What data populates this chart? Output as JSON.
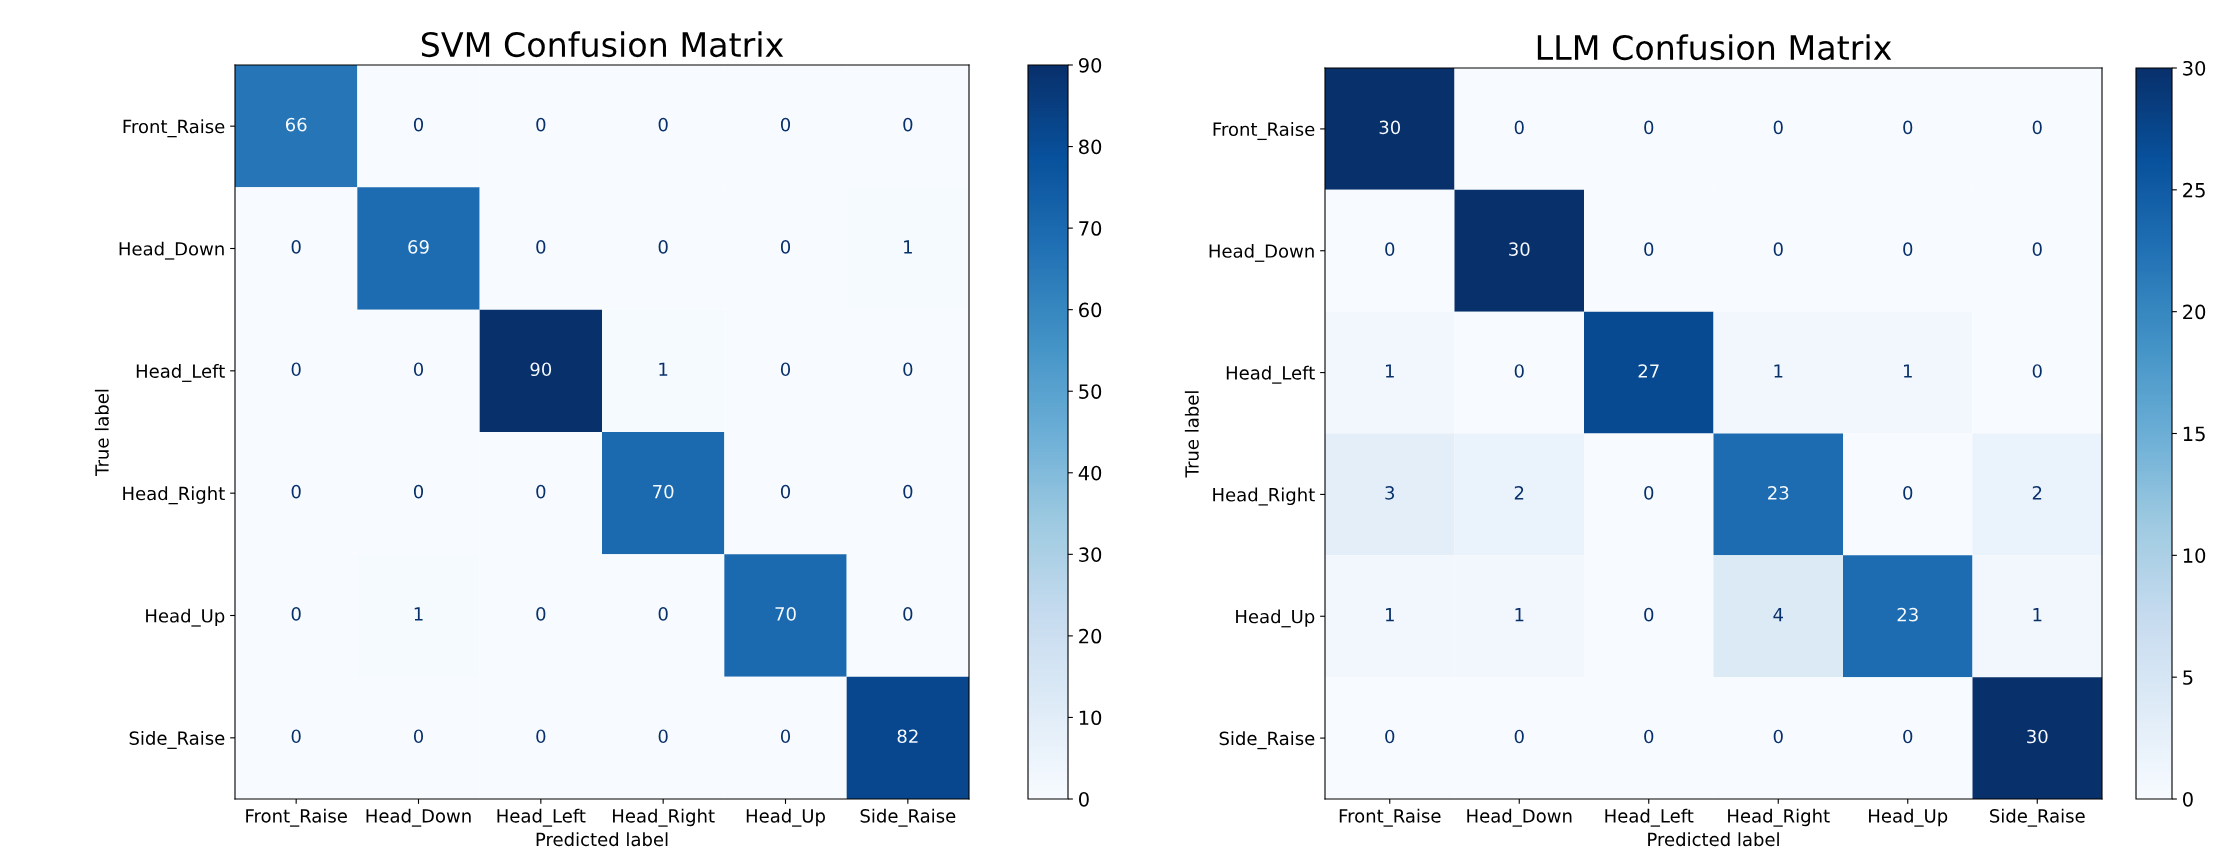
{
  "chart_data": [
    {
      "type": "heatmap",
      "title": "SVM Confusion Matrix",
      "xlabel": "Predicted label",
      "ylabel": "True label",
      "categories": [
        "Front_Raise",
        "Head_Down",
        "Head_Left",
        "Head_Right",
        "Head_Up",
        "Side_Raise"
      ],
      "y_categories": [
        "Front_Raise",
        "Head_Down",
        "Head_Left",
        "Head_Right",
        "Head_Up",
        "Side_Raise"
      ],
      "cells": [
        [
          66,
          0,
          0,
          0,
          0,
          0
        ],
        [
          0,
          69,
          0,
          0,
          0,
          1
        ],
        [
          0,
          0,
          90,
          1,
          0,
          0
        ],
        [
          0,
          0,
          0,
          70,
          0,
          0
        ],
        [
          0,
          1,
          0,
          0,
          70,
          0
        ],
        [
          0,
          0,
          0,
          0,
          0,
          82
        ]
      ],
      "clim": [
        0,
        90
      ],
      "cticks": [
        0,
        10,
        20,
        30,
        40,
        50,
        60,
        70,
        80,
        90
      ],
      "data_labels": true,
      "grid": false
    },
    {
      "type": "heatmap",
      "title": "LLM Confusion Matrix",
      "xlabel": "Predicted label",
      "ylabel": "True label",
      "categories": [
        "Front_Raise",
        "Head_Down",
        "Head_Left",
        "Head_Right",
        "Head_Up",
        "Side_Raise"
      ],
      "y_categories": [
        "Front_Raise",
        "Head_Down",
        "Head_Left",
        "Head_Right",
        "Head_Up",
        "Side_Raise"
      ],
      "cells": [
        [
          30,
          0,
          0,
          0,
          0,
          0
        ],
        [
          0,
          30,
          0,
          0,
          0,
          0
        ],
        [
          1,
          0,
          27,
          1,
          1,
          0
        ],
        [
          3,
          2,
          0,
          23,
          0,
          2
        ],
        [
          1,
          1,
          0,
          4,
          23,
          1
        ],
        [
          0,
          0,
          0,
          0,
          0,
          30
        ]
      ],
      "clim": [
        0,
        30
      ],
      "cticks": [
        0,
        5,
        10,
        15,
        20,
        25,
        30
      ],
      "data_labels": true,
      "grid": false
    }
  ]
}
